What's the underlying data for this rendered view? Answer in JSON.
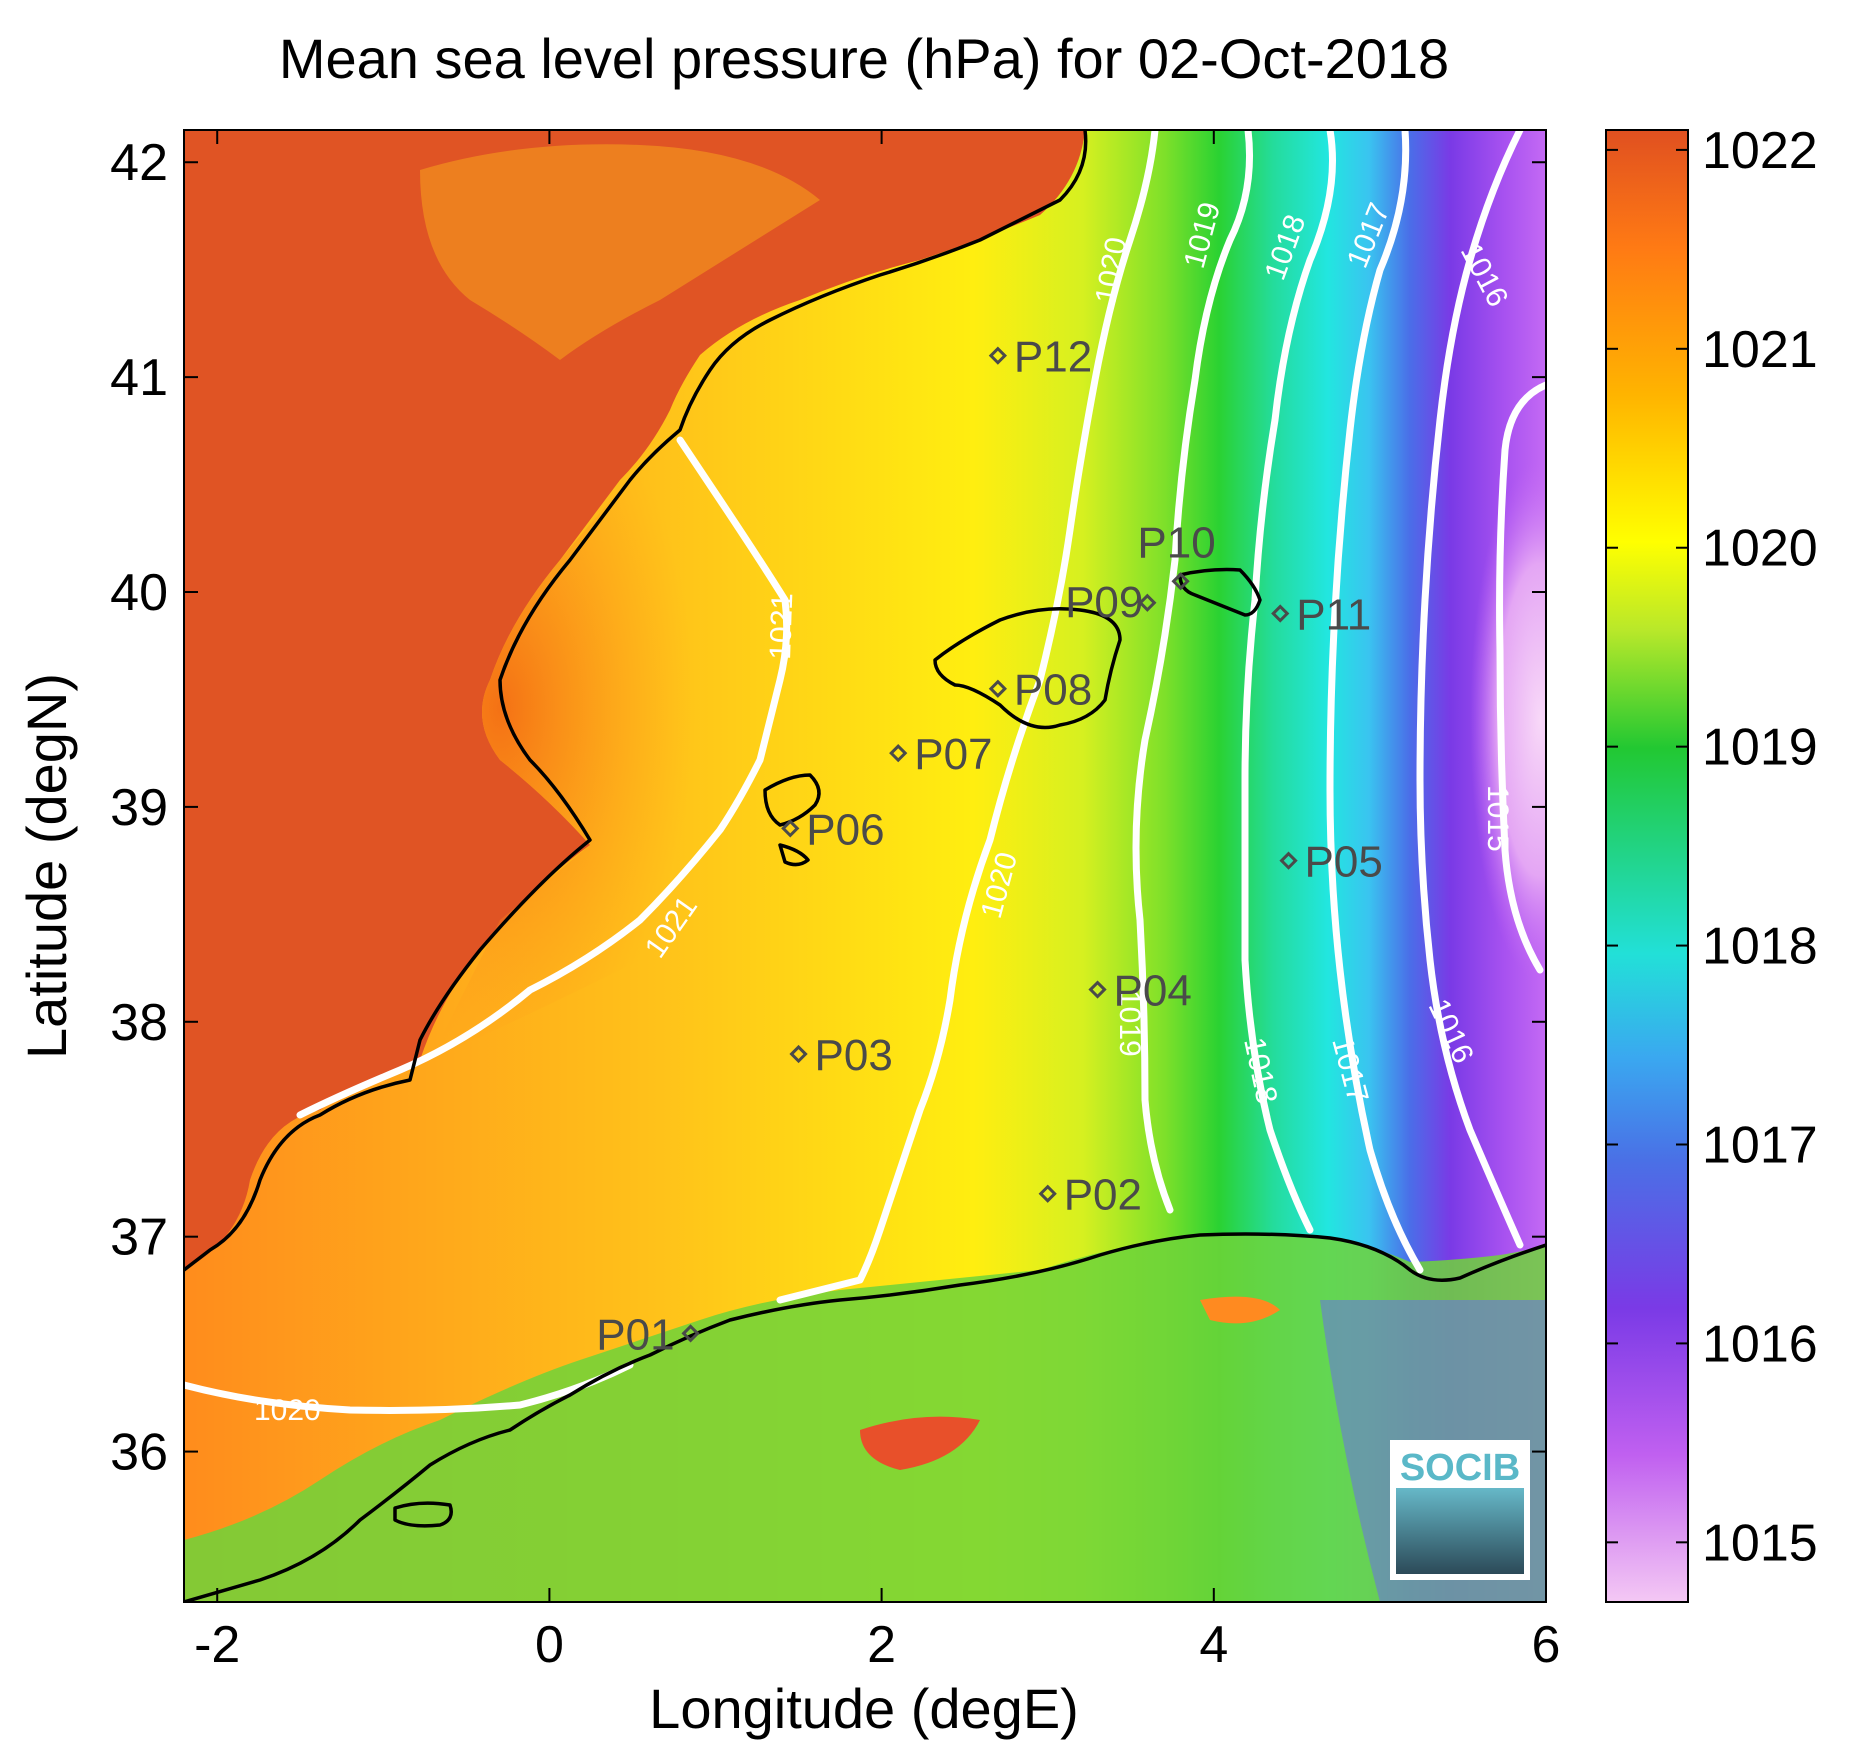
{
  "title": "Mean sea level pressure (hPa) for 02-Oct-2018",
  "x_axis": {
    "label": "Longitude (degE)",
    "range": [
      -2.2,
      6
    ],
    "ticks": [
      -2,
      0,
      2,
      4,
      6
    ]
  },
  "y_axis": {
    "label": "Latitude (degN)",
    "range": [
      35.3,
      42.15
    ],
    "ticks": [
      36,
      37,
      38,
      39,
      40,
      41,
      42
    ]
  },
  "colorbar": {
    "range": [
      1014.7,
      1022.1
    ],
    "ticks": [
      1015,
      1016,
      1017,
      1018,
      1019,
      1020,
      1021,
      1022
    ],
    "colormap": [
      "#f4c8f4",
      "#b45af0",
      "#7a3ae6",
      "#4aa8f0",
      "#22e0d8",
      "#22c832",
      "#b8e82a",
      "#ffff00",
      "#ffb400",
      "#ff7a14",
      "#e05020"
    ]
  },
  "stations": [
    {
      "name": "P01",
      "lon": 0.85,
      "lat": 36.55
    },
    {
      "name": "P02",
      "lon": 3.0,
      "lat": 37.2
    },
    {
      "name": "P03",
      "lon": 1.5,
      "lat": 37.85
    },
    {
      "name": "P04",
      "lon": 3.3,
      "lat": 38.15
    },
    {
      "name": "P05",
      "lon": 4.45,
      "lat": 38.75
    },
    {
      "name": "P06",
      "lon": 1.45,
      "lat": 38.9
    },
    {
      "name": "P07",
      "lon": 2.1,
      "lat": 39.25
    },
    {
      "name": "P08",
      "lon": 2.7,
      "lat": 39.55
    },
    {
      "name": "P09",
      "lon": 3.6,
      "lat": 39.95
    },
    {
      "name": "P10",
      "lon": 3.8,
      "lat": 40.05
    },
    {
      "name": "P11",
      "lon": 4.4,
      "lat": 39.9
    },
    {
      "name": "P12",
      "lon": 2.7,
      "lat": 41.1
    }
  ],
  "contour_labels": [
    "1021",
    "1021",
    "1020",
    "1020",
    "1020",
    "1019",
    "1019",
    "1018",
    "1018",
    "1017",
    "1017",
    "1016",
    "1016",
    "1015"
  ],
  "logo": {
    "text": "SOCIB"
  }
}
